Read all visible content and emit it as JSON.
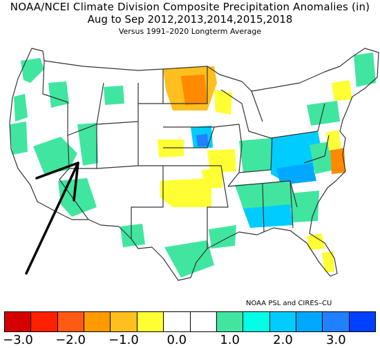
{
  "title": {
    "line1": "NOAA/NCEI Climate Division Composite Precipitation Anomalies (in)",
    "line2": "Aug to Sep  2012,2013,2014,2015,2018",
    "line3": "Versus 1991–2020 Longterm Average"
  },
  "credit": "NOAA PSL and CIRES–CU",
  "colors": {
    "outline": "#333333",
    "arrow": "#000000",
    "dry_strong": "#ff8a00",
    "dry_mid": "#ffbf1e",
    "dry_light": "#ffff33",
    "wet_light": "#40e6a0",
    "wet_mid": "#00ccff",
    "wet_strong": "#00a8ff",
    "wet_deep": "#2080ff"
  },
  "colorbar": {
    "colors": [
      "#d40000",
      "#ff2000",
      "#ff5a14",
      "#ff9a00",
      "#ffbf1e",
      "#ffff33",
      "#ffffff",
      "#ffffff",
      "#40e6a0",
      "#00ffe6",
      "#00ccff",
      "#00a8ff",
      "#2080ff",
      "#0040ff"
    ],
    "tick_labels": [
      "−3.0",
      "−2.0",
      "−1.0",
      "0.0",
      "1.0",
      "2.0",
      "3.0"
    ]
  },
  "annotation": {
    "type": "arrow",
    "points_to": "Nevada / Utah border"
  }
}
